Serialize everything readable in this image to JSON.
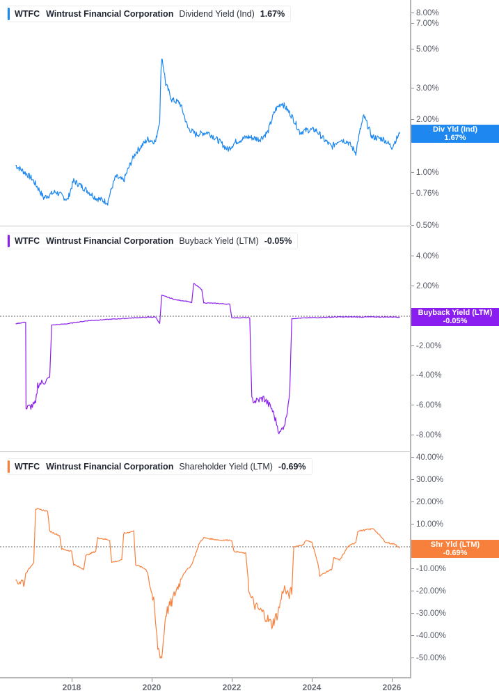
{
  "panels": [
    {
      "id": "dividend",
      "legend": {
        "ticker": "WTFC",
        "company": "Wintrust Financial Corporation",
        "metric": "Dividend Yield (Ind)",
        "value": "1.67%"
      },
      "color": "#1e88f0",
      "badge": {
        "line1": "Div Yld (Ind)",
        "line2": "1.67%"
      },
      "yticks": [
        "8.00%",
        "7.00%",
        "5.00%",
        "3.00%",
        "2.00%",
        "1.00%",
        "0.76%",
        "0.50%"
      ]
    },
    {
      "id": "buyback",
      "legend": {
        "ticker": "WTFC",
        "company": "Wintrust Financial Corporation",
        "metric": "Buyback Yield (LTM)",
        "value": "-0.05%"
      },
      "color": "#8a1ef0",
      "badge": {
        "line1": "Buyback Yield (LTM)",
        "line2": "-0.05%"
      },
      "yticks": [
        "4.00%",
        "2.00%",
        "0.00%",
        "-2.00%",
        "-4.00%",
        "-6.00%",
        "-8.00%"
      ]
    },
    {
      "id": "shareholder",
      "legend": {
        "ticker": "WTFC",
        "company": "Wintrust Financial Corporation",
        "metric": "Shareholder Yield (LTM)",
        "value": "-0.69%"
      },
      "color": "#f7803c",
      "badge": {
        "line1": "Shr Yld (LTM)",
        "line2": "-0.69%"
      },
      "yticks": [
        "40.00%",
        "30.00%",
        "20.00%",
        "10.00%",
        "0.00%",
        "-10.00%",
        "-20.00%",
        "-30.00%",
        "-40.00%",
        "-50.00%"
      ]
    }
  ],
  "xaxis": {
    "ticks": [
      "2018",
      "2020",
      "2022",
      "2024",
      "2026"
    ]
  },
  "chart_data": [
    {
      "type": "line",
      "title": "WTFC Wintrust Financial Corporation Dividend Yield (Ind)",
      "ylabel": "Dividend Yield (Ind)",
      "yscale": "log",
      "ylim": [
        0.5,
        8.5
      ],
      "yticks": [
        8.0,
        7.0,
        5.0,
        3.0,
        2.0,
        1.0,
        0.76,
        0.5
      ],
      "x": [
        2016.6,
        2017.0,
        2017.3,
        2017.6,
        2017.9,
        2018.05,
        2018.3,
        2018.6,
        2018.9,
        2019.1,
        2019.3,
        2019.6,
        2019.9,
        2020.1,
        2020.2,
        2020.25,
        2020.35,
        2020.5,
        2020.7,
        2020.9,
        2021.1,
        2021.4,
        2021.7,
        2021.9,
        2022.1,
        2022.4,
        2022.7,
        2022.9,
        2023.1,
        2023.25,
        2023.5,
        2023.7,
        2023.9,
        2024.1,
        2024.3,
        2024.5,
        2024.7,
        2024.9,
        2025.1,
        2025.3,
        2025.5,
        2025.8,
        2026.0,
        2026.2
      ],
      "values": [
        1.1,
        0.93,
        0.72,
        0.78,
        0.7,
        0.9,
        0.82,
        0.72,
        0.68,
        0.95,
        0.9,
        1.3,
        1.55,
        1.5,
        2.0,
        4.6,
        3.2,
        2.6,
        2.5,
        1.8,
        1.65,
        1.7,
        1.5,
        1.35,
        1.5,
        1.6,
        1.55,
        1.7,
        2.3,
        2.5,
        2.1,
        1.7,
        1.75,
        1.75,
        1.55,
        1.4,
        1.55,
        1.5,
        1.3,
        2.1,
        1.6,
        1.55,
        1.4,
        1.67
      ],
      "series": [
        {
          "name": "Dividend Yield (Ind)",
          "color": "#1e88f0"
        }
      ],
      "last_value": 1.67
    },
    {
      "type": "line",
      "title": "WTFC Wintrust Financial Corporation Buyback Yield (LTM)",
      "ylabel": "Buyback Yield (LTM)",
      "ylim": [
        -8.5,
        5.0
      ],
      "yticks": [
        4.0,
        2.0,
        0.0,
        -2.0,
        -4.0,
        -6.0,
        -8.0
      ],
      "reference_line": 0.0,
      "x": [
        2016.6,
        2016.85,
        2016.86,
        2017.1,
        2017.15,
        2017.45,
        2017.5,
        2017.9,
        2018.4,
        2019.0,
        2019.6,
        2020.1,
        2020.2,
        2020.25,
        2020.6,
        2020.9,
        2021.0,
        2021.05,
        2021.25,
        2021.3,
        2021.7,
        2021.95,
        2022.0,
        2022.45,
        2022.5,
        2022.6,
        2022.8,
        2023.0,
        2023.1,
        2023.2,
        2023.35,
        2023.45,
        2023.5,
        2024.0,
        2024.6,
        2025.4,
        2026.2
      ],
      "values": [
        -0.5,
        -0.4,
        -6.2,
        -5.9,
        -4.6,
        -4.2,
        -0.6,
        -0.5,
        -0.3,
        -0.2,
        -0.1,
        -0.05,
        -0.5,
        1.4,
        1.1,
        1.0,
        0.9,
        2.2,
        1.8,
        0.9,
        0.85,
        0.8,
        -0.1,
        -0.1,
        -5.6,
        -5.7,
        -5.5,
        -6.2,
        -7.0,
        -7.9,
        -7.0,
        -5.0,
        -0.15,
        -0.1,
        -0.05,
        -0.05,
        -0.05
      ],
      "series": [
        {
          "name": "Buyback Yield (LTM)",
          "color": "#8a1ef0"
        }
      ],
      "last_value": -0.05
    },
    {
      "type": "line",
      "title": "WTFC Wintrust Financial Corporation Shareholder Yield (LTM)",
      "ylabel": "Shareholder Yield (LTM)",
      "ylim": [
        -55,
        43
      ],
      "yticks": [
        40,
        30,
        20,
        10,
        0,
        -10,
        -20,
        -30,
        -40,
        -50
      ],
      "reference_line": 0.0,
      "x": [
        2016.6,
        2016.82,
        2016.85,
        2017.05,
        2017.1,
        2017.4,
        2017.45,
        2017.7,
        2017.75,
        2018.0,
        2018.05,
        2018.3,
        2018.35,
        2018.6,
        2018.65,
        2018.95,
        2019.0,
        2019.25,
        2019.3,
        2019.55,
        2019.6,
        2019.85,
        2019.9,
        2020.05,
        2020.15,
        2020.25,
        2020.35,
        2020.5,
        2020.6,
        2020.8,
        2021.0,
        2021.2,
        2021.3,
        2021.7,
        2022.0,
        2022.05,
        2022.35,
        2022.45,
        2022.6,
        2022.8,
        2023.0,
        2023.15,
        2023.3,
        2023.4,
        2023.5,
        2023.55,
        2023.8,
        2023.85,
        2024.0,
        2024.15,
        2024.2,
        2024.5,
        2024.55,
        2024.7,
        2024.9,
        2025.1,
        2025.15,
        2025.5,
        2025.55,
        2025.85,
        2026.1,
        2026.2
      ],
      "values": [
        -15,
        -16,
        -12,
        -7,
        17,
        16,
        7,
        5,
        -1,
        -2,
        -8,
        -10,
        -4,
        -2,
        4,
        3,
        -7,
        -6,
        6,
        7,
        -8,
        -10,
        -12,
        -25,
        -45,
        -50,
        -30,
        -25,
        -20,
        -12,
        -8,
        2,
        4,
        3,
        3,
        -2,
        -3,
        -22,
        -27,
        -30,
        -35,
        -30,
        -18,
        -22,
        -20,
        0,
        1,
        3,
        2,
        -7,
        -13,
        -10,
        -5,
        -6,
        0,
        2,
        7,
        8,
        8,
        2,
        1,
        -0.69
      ],
      "series": [
        {
          "name": "Shareholder Yield (LTM)",
          "color": "#f7803c"
        }
      ],
      "last_value": -0.69
    }
  ]
}
